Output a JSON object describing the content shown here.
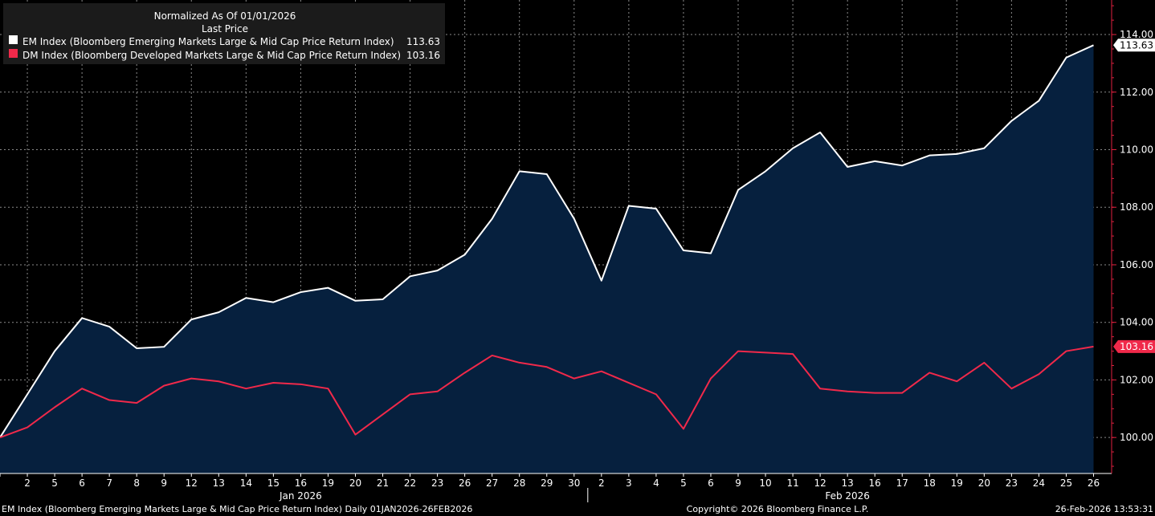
{
  "chart_data": {
    "type": "line",
    "title": "Normalized As Of 01/01/2026",
    "subtitle": "Last Price",
    "xlabel": "",
    "ylabel": "",
    "ylim": [
      98.75,
      115.2
    ],
    "y_ticks": [
      100,
      102,
      104,
      106,
      108,
      110,
      112,
      114
    ],
    "y_tick_labels": [
      "100.00",
      "102.00",
      "104.00",
      "106.00",
      "108.00",
      "110.00",
      "112.00",
      "114.00"
    ],
    "categories": [
      "",
      "2",
      "5",
      "6",
      "7",
      "8",
      "9",
      "12",
      "13",
      "14",
      "15",
      "16",
      "19",
      "20",
      "21",
      "22",
      "23",
      "26",
      "27",
      "28",
      "29",
      "30",
      "2",
      "3",
      "4",
      "5",
      "6",
      "9",
      "10",
      "11",
      "12",
      "13",
      "16",
      "17",
      "18",
      "19",
      "20",
      "23",
      "24",
      "25",
      "26"
    ],
    "month_labels": [
      {
        "label": "Jan 2026",
        "index": 11
      },
      {
        "label": "Feb 2026",
        "index": 31
      }
    ],
    "month_divider_index": 21.5,
    "series": [
      {
        "name": "EM Index (Bloomberg Emerging Markets Large & Mid Cap Price Return Index)",
        "color": "#ffffff",
        "fill": "#06203e",
        "last_value": "113.63",
        "values": [
          100.0,
          101.5,
          103.0,
          104.15,
          103.85,
          103.1,
          103.15,
          104.1,
          104.35,
          104.85,
          104.7,
          105.05,
          105.2,
          104.75,
          104.8,
          105.6,
          105.8,
          106.35,
          107.6,
          109.25,
          109.15,
          107.6,
          105.45,
          108.05,
          107.95,
          106.5,
          106.4,
          108.6,
          109.25,
          110.05,
          110.6,
          109.4,
          109.6,
          109.45,
          109.8,
          109.85,
          110.05,
          111.0,
          111.7,
          113.2,
          113.63
        ]
      },
      {
        "name": "DM Index (Bloomberg Developed Markets Large & Mid Cap Price Return Index)",
        "color": "#f0294a",
        "last_value": "103.16",
        "values": [
          100.0,
          100.35,
          101.05,
          101.7,
          101.3,
          101.2,
          101.8,
          102.05,
          101.95,
          101.7,
          101.9,
          101.85,
          101.7,
          100.1,
          100.8,
          101.5,
          101.6,
          102.25,
          102.85,
          102.6,
          102.45,
          102.05,
          102.3,
          101.9,
          101.5,
          100.3,
          102.05,
          103.0,
          102.95,
          102.9,
          101.7,
          101.6,
          101.55,
          101.55,
          102.25,
          101.95,
          102.6,
          101.7,
          102.2,
          103.0,
          103.16
        ]
      }
    ],
    "legend_title": "Normalized As Of 01/01/2026",
    "legend_subtitle": "Last Price",
    "legend_placement": "top-left"
  },
  "footer": {
    "left": "EM Index (Bloomberg Emerging Markets Large & Mid Cap Price Return Index) Daily 01JAN2026-26FEB2026",
    "center": "Copyright© 2026 Bloomberg Finance L.P.",
    "right": "26-Feb-2026 13:53:31"
  }
}
